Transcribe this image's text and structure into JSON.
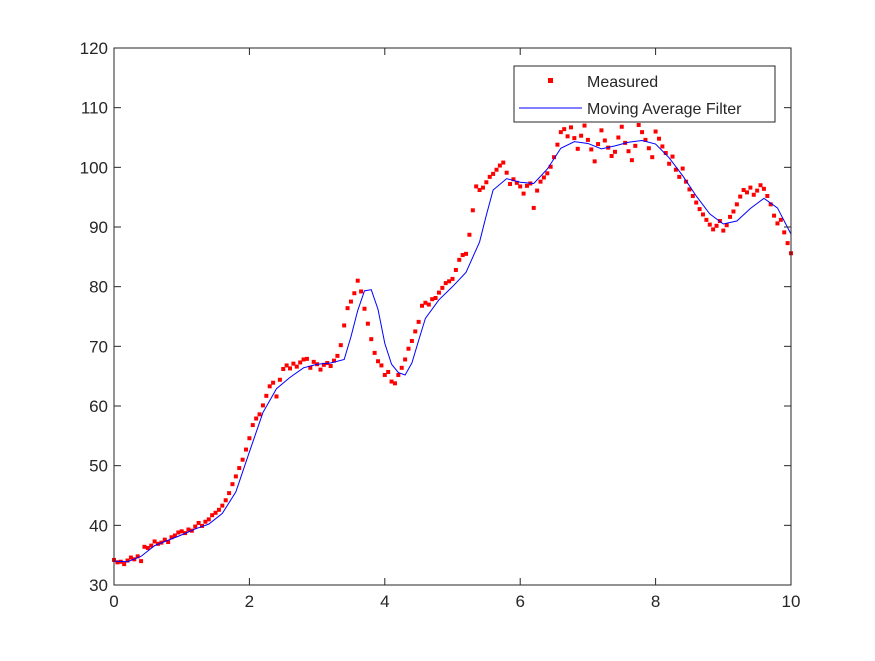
{
  "chart_data": {
    "type": "scatter",
    "title": "",
    "xlabel": "",
    "ylabel": "",
    "xlim": [
      0,
      10
    ],
    "ylim": [
      30,
      120
    ],
    "x_ticks": [
      0,
      2,
      4,
      6,
      8,
      10
    ],
    "y_ticks": [
      30,
      40,
      50,
      60,
      70,
      80,
      90,
      100,
      110,
      120
    ],
    "x_tick_labels": [
      "0",
      "2",
      "4",
      "6",
      "8",
      "10"
    ],
    "y_tick_labels": [
      "30",
      "40",
      "50",
      "60",
      "70",
      "80",
      "90",
      "100",
      "110",
      "120"
    ],
    "grid": false,
    "legend_placement": "top-right",
    "series": [
      {
        "name": "Measured",
        "style": "markers",
        "color": "#ff0000",
        "x": [
          0.0,
          0.05,
          0.1,
          0.15,
          0.2,
          0.25,
          0.3,
          0.35,
          0.4,
          0.45,
          0.5,
          0.55,
          0.6,
          0.65,
          0.7,
          0.75,
          0.8,
          0.85,
          0.9,
          0.95,
          1.0,
          1.05,
          1.1,
          1.15,
          1.2,
          1.25,
          1.3,
          1.35,
          1.4,
          1.45,
          1.5,
          1.55,
          1.6,
          1.65,
          1.7,
          1.75,
          1.8,
          1.85,
          1.9,
          1.95,
          2.0,
          2.05,
          2.1,
          2.15,
          2.2,
          2.25,
          2.3,
          2.35,
          2.4,
          2.45,
          2.5,
          2.55,
          2.6,
          2.65,
          2.7,
          2.75,
          2.8,
          2.85,
          2.9,
          2.95,
          3.0,
          3.05,
          3.1,
          3.15,
          3.2,
          3.25,
          3.3,
          3.35,
          3.4,
          3.45,
          3.5,
          3.55,
          3.6,
          3.65,
          3.7,
          3.75,
          3.8,
          3.85,
          3.9,
          3.95,
          4.0,
          4.05,
          4.1,
          4.15,
          4.2,
          4.25,
          4.3,
          4.35,
          4.4,
          4.45,
          4.5,
          4.55,
          4.6,
          4.65,
          4.7,
          4.75,
          4.8,
          4.85,
          4.9,
          4.95,
          5.0,
          5.05,
          5.1,
          5.15,
          5.2,
          5.25,
          5.3,
          5.35,
          5.4,
          5.45,
          5.5,
          5.55,
          5.6,
          5.65,
          5.7,
          5.75,
          5.8,
          5.85,
          5.9,
          5.95,
          6.0,
          6.05,
          6.1,
          6.15,
          6.2,
          6.25,
          6.3,
          6.35,
          6.4,
          6.45,
          6.5,
          6.55,
          6.6,
          6.65,
          6.7,
          6.75,
          6.8,
          6.85,
          6.9,
          6.95,
          7.0,
          7.05,
          7.1,
          7.15,
          7.2,
          7.25,
          7.3,
          7.35,
          7.4,
          7.45,
          7.5,
          7.55,
          7.6,
          7.65,
          7.7,
          7.75,
          7.8,
          7.85,
          7.9,
          7.95,
          8.0,
          8.05,
          8.1,
          8.15,
          8.2,
          8.25,
          8.3,
          8.35,
          8.4,
          8.45,
          8.5,
          8.55,
          8.6,
          8.65,
          8.7,
          8.75,
          8.8,
          8.85,
          8.9,
          8.95,
          9.0,
          9.05,
          9.1,
          9.15,
          9.2,
          9.25,
          9.3,
          9.35,
          9.4,
          9.45,
          9.5,
          9.55,
          9.6,
          9.65,
          9.7,
          9.75,
          9.8,
          9.85,
          9.9,
          9.95,
          10.0
        ],
        "y": [
          34.2,
          33.8,
          33.9,
          33.5,
          34.1,
          34.6,
          34.3,
          34.8,
          34.0,
          36.4,
          36.2,
          36.6,
          37.3,
          36.9,
          37.1,
          37.6,
          37.2,
          38.0,
          38.3,
          38.8,
          39.0,
          38.7,
          39.3,
          39.1,
          39.8,
          40.4,
          39.9,
          40.6,
          41.0,
          41.7,
          42.1,
          42.6,
          43.3,
          44.2,
          45.4,
          46.9,
          48.2,
          49.6,
          51.0,
          52.7,
          54.6,
          56.8,
          57.9,
          58.6,
          60.1,
          61.7,
          63.3,
          63.9,
          61.6,
          64.4,
          66.2,
          66.8,
          66.3,
          67.1,
          66.6,
          67.3,
          67.8,
          67.9,
          66.4,
          67.4,
          67.0,
          66.1,
          66.9,
          67.2,
          66.7,
          67.6,
          68.4,
          70.2,
          73.5,
          76.4,
          77.5,
          78.9,
          81.0,
          79.2,
          76.3,
          73.8,
          71.2,
          68.9,
          67.5,
          66.8,
          65.2,
          65.7,
          64.1,
          63.8,
          65.2,
          66.4,
          67.8,
          69.6,
          70.9,
          72.5,
          74.1,
          76.8,
          77.3,
          77.0,
          77.9,
          78.1,
          79.0,
          79.8,
          80.6,
          80.9,
          81.3,
          82.8,
          84.5,
          85.3,
          85.5,
          88.7,
          92.8,
          96.8,
          96.2,
          96.6,
          97.5,
          98.4,
          98.9,
          99.6,
          100.3,
          100.8,
          99.1,
          97.2,
          98.0,
          97.4,
          96.8,
          95.6,
          96.9,
          97.3,
          93.2,
          96.1,
          97.6,
          98.3,
          99.0,
          100.1,
          101.7,
          103.8,
          105.9,
          106.4,
          105.2,
          106.7,
          104.9,
          103.1,
          105.3,
          107.0,
          104.6,
          103.0,
          101.0,
          103.9,
          106.2,
          104.5,
          103.3,
          101.9,
          102.6,
          105.0,
          106.8,
          104.1,
          102.7,
          101.2,
          103.6,
          107.1,
          105.9,
          104.6,
          103.2,
          101.7,
          106.0,
          104.8,
          103.5,
          102.4,
          100.6,
          101.8,
          99.6,
          98.4,
          99.8,
          97.6,
          96.3,
          95.2,
          94.1,
          93.0,
          92.1,
          91.2,
          90.4,
          89.6,
          90.2,
          91.0,
          89.4,
          90.3,
          91.7,
          92.6,
          93.8,
          95.1,
          96.2,
          95.8,
          96.6,
          95.4,
          96.1,
          97.0,
          96.4,
          95.2,
          93.8,
          91.9,
          90.6,
          91.2,
          89.1,
          87.3,
          85.6
        ]
      },
      {
        "name": "Moving Average Filter",
        "style": "line",
        "color": "#0000ff",
        "x": [
          0.0,
          0.2,
          0.4,
          0.6,
          0.8,
          1.0,
          1.2,
          1.4,
          1.6,
          1.8,
          2.0,
          2.2,
          2.4,
          2.6,
          2.8,
          3.0,
          3.2,
          3.4,
          3.5,
          3.6,
          3.7,
          3.8,
          3.9,
          4.0,
          4.1,
          4.2,
          4.3,
          4.4,
          4.5,
          4.6,
          4.8,
          5.0,
          5.2,
          5.4,
          5.5,
          5.6,
          5.8,
          6.0,
          6.2,
          6.4,
          6.6,
          6.8,
          7.0,
          7.2,
          7.4,
          7.6,
          7.8,
          8.0,
          8.2,
          8.4,
          8.6,
          8.8,
          9.0,
          9.2,
          9.4,
          9.6,
          9.8,
          10.0
        ],
        "y": [
          34.0,
          33.9,
          34.8,
          36.6,
          37.5,
          38.4,
          39.4,
          40.2,
          42.0,
          45.6,
          52.3,
          58.9,
          62.9,
          64.8,
          66.4,
          67.0,
          67.2,
          67.8,
          71.6,
          76.0,
          79.3,
          79.5,
          76.2,
          70.5,
          67.0,
          65.6,
          65.2,
          67.2,
          71.0,
          74.7,
          77.8,
          80.0,
          82.4,
          87.5,
          92.0,
          96.2,
          98.1,
          97.5,
          97.3,
          99.7,
          103.2,
          104.3,
          104.0,
          103.1,
          103.6,
          104.2,
          104.5,
          103.9,
          101.6,
          98.6,
          95.2,
          92.2,
          90.5,
          91.0,
          93.1,
          94.8,
          93.2,
          88.8
        ]
      }
    ]
  }
}
